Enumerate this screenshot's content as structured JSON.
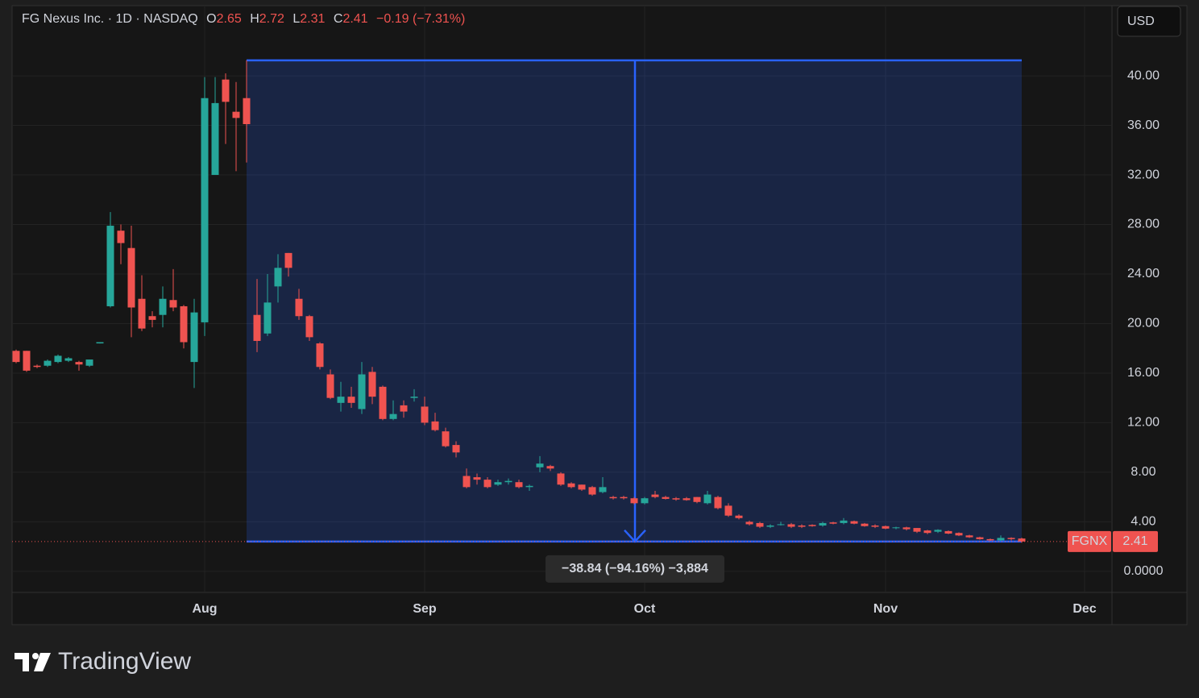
{
  "chart_data": {
    "type": "candlestick",
    "title": "FG Nexus Inc. · 1D · NASDAQ",
    "ohlc_labels": [
      "O",
      "H",
      "L",
      "C"
    ],
    "change": "−0.19 (−7.31%)",
    "currency": "USD",
    "brand": "TradingView",
    "categories": [
      null,
      null,
      null,
      null,
      null,
      null,
      null,
      null,
      null,
      null,
      null,
      null,
      null,
      null,
      null,
      null,
      null,
      null,
      "Aug",
      null,
      null,
      null,
      null,
      null,
      null,
      null,
      null,
      null,
      null,
      null,
      null,
      null,
      null,
      null,
      null,
      null,
      null,
      null,
      null,
      "Sep",
      null,
      null,
      null,
      null,
      null,
      null,
      null,
      null,
      null,
      null,
      null,
      null,
      null,
      null,
      null,
      null,
      null,
      null,
      null,
      null,
      "Oct",
      null,
      null,
      null,
      null,
      null,
      null,
      null,
      null,
      null,
      null,
      null,
      null,
      null,
      null,
      null,
      null,
      null,
      null,
      null,
      null,
      null,
      null,
      "Nov",
      null,
      null,
      null,
      null,
      null,
      null,
      null,
      null,
      null,
      null,
      null,
      null,
      null,
      null,
      null,
      null,
      null,
      null,
      "Dec"
    ],
    "series": [
      {
        "name": "FGNX",
        "up_color": "#26a69a",
        "down_color": "#ef5350",
        "open": [
          17.8,
          17.8,
          16.6,
          16.6,
          16.9,
          17.0,
          16.9,
          16.6,
          18.4,
          21.4,
          27.5,
          26.1,
          22.0,
          20.6,
          20.7,
          21.9,
          21.4,
          16.9,
          20.1,
          32.0,
          39.7,
          37.1,
          38.2,
          20.7,
          19.2,
          23.0,
          25.7,
          22.0,
          20.6,
          18.4,
          15.9,
          13.6,
          14.1,
          13.1,
          16.1,
          14.9,
          12.3,
          13.4,
          14.0,
          13.3,
          12.1,
          11.3,
          10.2,
          7.7,
          7.6,
          7.4,
          7.0,
          7.2,
          7.2,
          6.8,
          8.4,
          8.5,
          7.9,
          7.1,
          7.0,
          6.8,
          6.4,
          6.0,
          6.0,
          5.9,
          5.5,
          6.2,
          6.0,
          5.9,
          5.9,
          6.0,
          5.5,
          6.0,
          5.3,
          4.5,
          4.0,
          3.9,
          3.6,
          3.75,
          3.8,
          3.7,
          3.75,
          3.7,
          3.95,
          3.9,
          4.05,
          3.85,
          3.7,
          3.65,
          3.5,
          3.55,
          3.5,
          3.3,
          3.2,
          3.25,
          3.1,
          2.9,
          2.75,
          2.6,
          2.5,
          2.7,
          2.65,
          null,
          null,
          null,
          null,
          null,
          null
        ],
        "high": [
          17.9,
          17.8,
          16.7,
          17.1,
          17.5,
          17.3,
          17.0,
          17.1,
          18.5,
          29.0,
          28.0,
          27.9,
          23.9,
          21.0,
          23.0,
          24.4,
          21.5,
          22.0,
          39.9,
          39.9,
          40.2,
          39.5,
          41.25,
          23.6,
          24.0,
          25.6,
          25.7,
          22.8,
          20.7,
          18.5,
          16.3,
          15.3,
          14.9,
          16.9,
          16.5,
          15.0,
          13.8,
          13.8,
          14.7,
          14.1,
          12.8,
          11.6,
          10.5,
          8.3,
          7.9,
          7.6,
          7.4,
          7.5,
          7.4,
          7.0,
          9.3,
          8.6,
          8.0,
          7.2,
          7.0,
          6.9,
          7.6,
          6.1,
          6.1,
          6.0,
          6.0,
          6.5,
          6.1,
          6.0,
          6.0,
          6.0,
          6.5,
          6.1,
          5.5,
          4.6,
          4.1,
          4.0,
          3.8,
          4.0,
          3.9,
          3.8,
          3.8,
          4.0,
          4.0,
          4.3,
          4.1,
          3.9,
          3.8,
          3.7,
          3.6,
          3.6,
          3.5,
          3.35,
          3.4,
          3.3,
          3.15,
          2.95,
          2.8,
          2.65,
          2.9,
          2.75,
          2.72,
          null,
          null,
          null,
          null,
          null,
          null
        ],
        "low": [
          16.8,
          16.1,
          16.4,
          16.5,
          16.8,
          16.9,
          16.2,
          16.5,
          18.4,
          21.3,
          24.8,
          18.9,
          19.4,
          19.7,
          19.7,
          21.0,
          18.0,
          14.8,
          19.0,
          32.0,
          34.5,
          32.3,
          33.0,
          17.7,
          19.0,
          21.7,
          23.8,
          20.3,
          18.6,
          16.3,
          13.9,
          12.9,
          13.2,
          12.7,
          13.5,
          12.2,
          12.2,
          12.4,
          13.7,
          11.8,
          11.3,
          10.0,
          9.2,
          6.7,
          7.0,
          6.7,
          6.9,
          7.0,
          6.7,
          6.5,
          8.0,
          8.1,
          6.9,
          6.7,
          6.5,
          6.1,
          6.3,
          5.8,
          5.8,
          5.4,
          5.4,
          5.9,
          5.8,
          5.7,
          5.7,
          5.5,
          5.4,
          5.0,
          4.4,
          4.2,
          3.7,
          3.5,
          3.5,
          3.7,
          3.5,
          3.5,
          3.6,
          3.6,
          3.8,
          3.8,
          3.8,
          3.6,
          3.5,
          3.4,
          3.4,
          3.3,
          3.1,
          3.0,
          3.1,
          3.0,
          2.85,
          2.7,
          2.55,
          2.45,
          2.45,
          2.5,
          2.31,
          null,
          null,
          null,
          null,
          null,
          null
        ],
        "close": [
          16.9,
          16.2,
          16.5,
          17.0,
          17.4,
          17.2,
          16.7,
          17.1,
          18.5,
          27.9,
          26.5,
          21.3,
          19.6,
          20.3,
          22.0,
          21.3,
          18.5,
          20.9,
          38.2,
          37.8,
          37.9,
          36.6,
          36.1,
          18.6,
          21.7,
          24.5,
          24.5,
          20.6,
          18.9,
          16.5,
          14.0,
          14.1,
          13.6,
          15.9,
          14.1,
          12.3,
          12.7,
          12.9,
          14.1,
          12.0,
          11.4,
          10.1,
          9.6,
          6.8,
          7.4,
          6.8,
          7.2,
          7.3,
          6.8,
          6.9,
          8.7,
          8.3,
          7.0,
          6.8,
          6.6,
          6.2,
          6.8,
          5.9,
          5.9,
          5.5,
          5.9,
          6.0,
          5.85,
          5.8,
          5.75,
          5.6,
          6.2,
          5.1,
          4.5,
          4.3,
          3.8,
          3.6,
          3.7,
          3.8,
          3.6,
          3.6,
          3.65,
          3.9,
          3.85,
          4.1,
          3.85,
          3.65,
          3.6,
          3.45,
          3.55,
          3.4,
          3.2,
          3.1,
          3.35,
          3.05,
          2.9,
          2.75,
          2.6,
          2.5,
          2.7,
          2.6,
          2.41,
          null,
          null,
          null,
          null,
          null,
          null
        ]
      }
    ],
    "measure": {
      "from": 41.25,
      "to": 2.41,
      "label": "−38.84 (−94.16%) −3,884",
      "color": "#2962ff"
    },
    "ylim": [
      -1.7,
      45.6
    ],
    "yticks": [
      {
        "value": 0,
        "label": "0.0000"
      },
      {
        "value": 4,
        "label": "4.00"
      },
      {
        "value": 8,
        "label": "8.00"
      },
      {
        "value": 12,
        "label": "12.00"
      },
      {
        "value": 16,
        "label": "16.00"
      },
      {
        "value": 20,
        "label": "20.00"
      },
      {
        "value": 24,
        "label": "24.00"
      },
      {
        "value": 28,
        "label": "28.00"
      },
      {
        "value": 32,
        "label": "32.00"
      },
      {
        "value": 36,
        "label": "36.00"
      },
      {
        "value": 40,
        "label": "40.00"
      }
    ],
    "grid": true
  }
}
